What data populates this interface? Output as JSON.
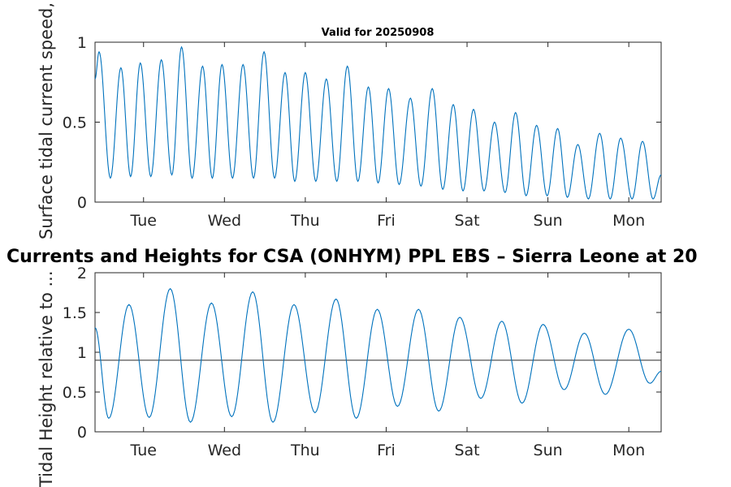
{
  "figure": {
    "title": "Currents and Heights for CSA (ONHYM) PPL EBS  – Sierra Leone at 20",
    "colors": {
      "series": "#0072BD",
      "mean_line": "#404040",
      "axes": "#262626"
    }
  },
  "chart_data": [
    {
      "type": "line",
      "title": "Valid for 20250908",
      "xlabel": "",
      "ylabel": "Surface tidal current speed, kn",
      "x_unit": "days from start of plot window",
      "xlim": [
        0,
        7
      ],
      "ylim": [
        0,
        1
      ],
      "x_ticks": [
        0.6,
        1.6,
        2.6,
        3.6,
        4.6,
        5.6,
        6.6
      ],
      "x_tick_labels": [
        "Tue",
        "Wed",
        "Thu",
        "Fri",
        "Sat",
        "Sun",
        "Mon"
      ],
      "y_ticks": [
        0,
        0.5,
        1
      ],
      "y_tick_labels": [
        "0",
        "0.5",
        "1"
      ],
      "grid": false,
      "series": [
        {
          "color": "#0072BD",
          "peaks": [
            [
              0.05,
              0.94
            ],
            [
              0.32,
              0.84
            ],
            [
              0.56,
              0.87
            ],
            [
              0.82,
              0.89
            ],
            [
              1.07,
              0.97
            ],
            [
              1.33,
              0.85
            ],
            [
              1.57,
              0.86
            ],
            [
              1.83,
              0.86
            ],
            [
              2.09,
              0.94
            ],
            [
              2.35,
              0.81
            ],
            [
              2.6,
              0.81
            ],
            [
              2.86,
              0.77
            ],
            [
              3.12,
              0.85
            ],
            [
              3.38,
              0.72
            ],
            [
              3.63,
              0.71
            ],
            [
              3.9,
              0.65
            ],
            [
              4.17,
              0.71
            ],
            [
              4.43,
              0.61
            ],
            [
              4.68,
              0.58
            ],
            [
              4.94,
              0.5
            ],
            [
              5.2,
              0.56
            ],
            [
              5.46,
              0.48
            ],
            [
              5.72,
              0.46
            ],
            [
              5.97,
              0.36
            ],
            [
              6.24,
              0.43
            ],
            [
              6.5,
              0.4
            ],
            [
              6.77,
              0.38
            ]
          ],
          "troughs": [
            [
              0.19,
              0.15
            ],
            [
              0.44,
              0.16
            ],
            [
              0.69,
              0.16
            ],
            [
              0.95,
              0.17
            ],
            [
              1.2,
              0.15
            ],
            [
              1.45,
              0.15
            ],
            [
              1.7,
              0.15
            ],
            [
              1.96,
              0.15
            ],
            [
              2.22,
              0.15
            ],
            [
              2.47,
              0.13
            ],
            [
              2.73,
              0.13
            ],
            [
              2.99,
              0.13
            ],
            [
              3.25,
              0.13
            ],
            [
              3.5,
              0.12
            ],
            [
              3.76,
              0.11
            ],
            [
              4.03,
              0.1
            ],
            [
              4.3,
              0.08
            ],
            [
              4.55,
              0.07
            ],
            [
              4.81,
              0.07
            ],
            [
              5.07,
              0.06
            ],
            [
              5.33,
              0.04
            ],
            [
              5.59,
              0.04
            ],
            [
              5.84,
              0.03
            ],
            [
              6.1,
              0.02
            ],
            [
              6.37,
              0.02
            ],
            [
              6.64,
              0.02
            ],
            [
              6.9,
              0.02
            ]
          ],
          "start_value": 0.77,
          "end_value": 0.17
        }
      ]
    },
    {
      "type": "line",
      "title": "",
      "xlabel": "",
      "ylabel": "Tidal Height relative to ...",
      "x_unit": "days from start of plot window",
      "xlim": [
        0,
        7
      ],
      "ylim": [
        0,
        2
      ],
      "x_ticks": [
        0.6,
        1.6,
        2.6,
        3.6,
        4.6,
        5.6,
        6.6
      ],
      "x_tick_labels": [
        "Tue",
        "Wed",
        "Thu",
        "Fri",
        "Sat",
        "Sun",
        "Mon"
      ],
      "y_ticks": [
        0,
        0.5,
        1,
        1.5,
        2
      ],
      "y_tick_labels": [
        "0",
        "0.5",
        "1",
        "1.5",
        "2"
      ],
      "grid": false,
      "mean_level": 0.9,
      "series": [
        {
          "color": "#0072BD",
          "peaks": [
            [
              0.42,
              1.6
            ],
            [
              0.93,
              1.8
            ],
            [
              1.44,
              1.62
            ],
            [
              1.95,
              1.76
            ],
            [
              2.46,
              1.6
            ],
            [
              2.98,
              1.67
            ],
            [
              3.49,
              1.54
            ],
            [
              4.0,
              1.54
            ],
            [
              4.51,
              1.44
            ],
            [
              5.03,
              1.39
            ],
            [
              5.54,
              1.35
            ],
            [
              6.05,
              1.24
            ],
            [
              6.6,
              1.29
            ]
          ],
          "troughs": [
            [
              0.17,
              0.17
            ],
            [
              0.67,
              0.18
            ],
            [
              1.18,
              0.12
            ],
            [
              1.69,
              0.19
            ],
            [
              2.2,
              0.12
            ],
            [
              2.72,
              0.24
            ],
            [
              3.23,
              0.17
            ],
            [
              3.74,
              0.32
            ],
            [
              4.25,
              0.26
            ],
            [
              4.77,
              0.42
            ],
            [
              5.28,
              0.36
            ],
            [
              5.8,
              0.53
            ],
            [
              6.31,
              0.47
            ],
            [
              6.86,
              0.61
            ]
          ],
          "start_value": 1.31,
          "end_value": 0.76
        }
      ]
    }
  ]
}
